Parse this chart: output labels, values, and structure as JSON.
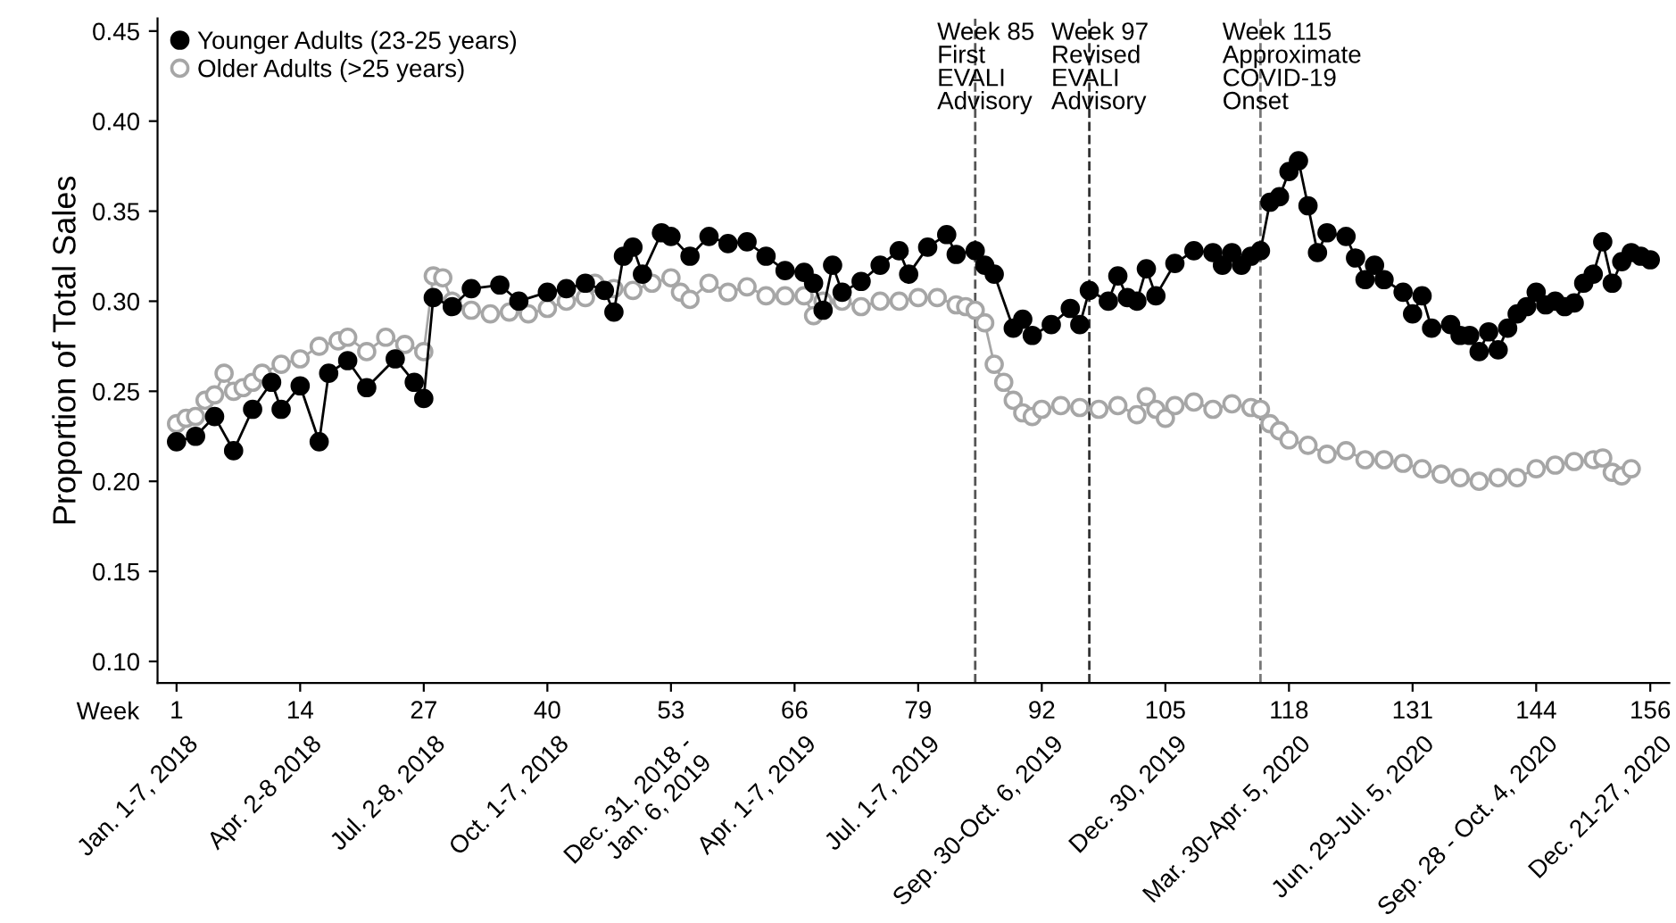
{
  "chart_data": {
    "type": "line",
    "ylabel": "Proportion of Total Sales",
    "xlabel": "Week",
    "xlim": [
      -1,
      158
    ],
    "ylim": [
      0.088,
      0.457
    ],
    "xticks": [
      1,
      14,
      27,
      40,
      53,
      66,
      79,
      92,
      105,
      118,
      131,
      144,
      156
    ],
    "yticks": [
      {
        "value": 0.1,
        "label": "0.10"
      },
      {
        "value": 0.15,
        "label": "0.15"
      },
      {
        "value": 0.2,
        "label": "0.20"
      },
      {
        "value": 0.25,
        "label": "0.25"
      },
      {
        "value": 0.3,
        "label": "0.30"
      },
      {
        "value": 0.35,
        "label": "0.35"
      },
      {
        "value": 0.4,
        "label": "0.40"
      },
      {
        "value": 0.45,
        "label": "0.45"
      }
    ],
    "grid": false,
    "legend": "top left",
    "marker": "circle",
    "line_style": "solid",
    "series": [
      {
        "name": "Younger Adults (23-25 years)",
        "color": "#000000",
        "x": [
          1,
          3,
          5,
          7,
          9,
          11,
          12,
          14,
          16,
          17,
          19,
          21,
          24,
          26,
          27,
          28,
          30,
          32,
          35,
          37,
          40,
          42,
          44,
          46,
          47,
          48,
          49,
          50,
          52,
          53,
          55,
          57,
          59,
          61,
          63,
          65,
          67,
          68,
          69,
          70,
          71,
          73,
          75,
          77,
          78,
          80,
          82,
          83,
          85,
          86,
          87,
          89,
          90,
          91,
          93,
          95,
          96,
          97,
          99,
          100,
          101,
          102,
          103,
          104,
          106,
          108,
          110,
          111,
          112,
          113,
          114,
          115,
          116,
          117,
          118,
          119,
          120,
          121,
          122,
          124,
          125,
          126,
          127,
          128,
          130,
          131,
          132,
          133,
          135,
          136,
          137,
          138,
          139,
          140,
          141,
          142,
          143,
          144,
          145,
          146,
          147,
          148,
          149,
          150,
          151,
          152,
          153,
          154,
          155,
          156
        ],
        "values": [
          0.222,
          0.225,
          0.236,
          0.217,
          0.24,
          0.255,
          0.24,
          0.253,
          0.222,
          0.26,
          0.267,
          0.252,
          0.268,
          0.255,
          0.246,
          0.302,
          0.297,
          0.307,
          0.309,
          0.3,
          0.305,
          0.307,
          0.31,
          0.306,
          0.294,
          0.325,
          0.33,
          0.315,
          0.338,
          0.336,
          0.325,
          0.336,
          0.332,
          0.333,
          0.325,
          0.317,
          0.316,
          0.31,
          0.295,
          0.32,
          0.305,
          0.311,
          0.32,
          0.328,
          0.315,
          0.33,
          0.337,
          0.326,
          0.328,
          0.32,
          0.315,
          0.285,
          0.29,
          0.281,
          0.287,
          0.296,
          0.287,
          0.306,
          0.3,
          0.314,
          0.302,
          0.3,
          0.318,
          0.303,
          0.321,
          0.328,
          0.327,
          0.32,
          0.327,
          0.32,
          0.325,
          0.328,
          0.355,
          0.358,
          0.372,
          0.378,
          0.353,
          0.327,
          0.338,
          0.336,
          0.324,
          0.312,
          0.32,
          0.312,
          0.305,
          0.293,
          0.303,
          0.285,
          0.287,
          0.281,
          0.281,
          0.272,
          0.283,
          0.273,
          0.285,
          0.293,
          0.297,
          0.305,
          0.298,
          0.3,
          0.297,
          0.299,
          0.31,
          0.315,
          0.333,
          0.31,
          0.322,
          0.327,
          0.325,
          0.323
        ]
      },
      {
        "name": "Older Adults (>25 years)",
        "color": "#a6a6a6",
        "x": [
          1,
          2,
          3,
          4,
          5,
          6,
          7,
          8,
          9,
          10,
          12,
          14,
          16,
          18,
          19,
          21,
          23,
          25,
          27,
          28,
          29,
          30,
          32,
          34,
          36,
          38,
          40,
          42,
          44,
          45,
          47,
          49,
          51,
          53,
          54,
          55,
          57,
          59,
          61,
          63,
          65,
          67,
          68,
          69,
          71,
          73,
          75,
          77,
          79,
          81,
          83,
          84,
          85,
          86,
          87,
          88,
          89,
          90,
          91,
          92,
          94,
          96,
          98,
          100,
          102,
          103,
          104,
          105,
          106,
          108,
          110,
          112,
          114,
          115,
          116,
          117,
          118,
          120,
          122,
          124,
          126,
          128,
          130,
          132,
          134,
          136,
          138,
          140,
          142,
          144,
          146,
          148,
          150,
          151,
          152,
          153,
          154
        ],
        "values": [
          0.232,
          0.235,
          0.236,
          0.245,
          0.248,
          0.26,
          0.25,
          0.252,
          0.255,
          0.26,
          0.265,
          0.268,
          0.275,
          0.278,
          0.28,
          0.272,
          0.28,
          0.276,
          0.272,
          0.314,
          0.313,
          0.3,
          0.295,
          0.293,
          0.294,
          0.293,
          0.296,
          0.3,
          0.302,
          0.31,
          0.307,
          0.306,
          0.31,
          0.313,
          0.305,
          0.301,
          0.31,
          0.305,
          0.308,
          0.303,
          0.303,
          0.303,
          0.292,
          0.3,
          0.3,
          0.297,
          0.3,
          0.3,
          0.302,
          0.302,
          0.298,
          0.297,
          0.295,
          0.288,
          0.265,
          0.255,
          0.245,
          0.238,
          0.236,
          0.24,
          0.242,
          0.241,
          0.24,
          0.242,
          0.237,
          0.247,
          0.24,
          0.235,
          0.242,
          0.244,
          0.24,
          0.243,
          0.241,
          0.24,
          0.232,
          0.228,
          0.223,
          0.22,
          0.215,
          0.217,
          0.212,
          0.212,
          0.21,
          0.207,
          0.204,
          0.202,
          0.2,
          0.202,
          0.202,
          0.207,
          0.209,
          0.211,
          0.212,
          0.213,
          0.205,
          0.203,
          0.207
        ]
      }
    ],
    "ref_lines": [
      {
        "axis": "x",
        "value": 85,
        "label": "Week 85\nFirst\nEVALI\nAdvisory",
        "color": "#555555",
        "line_style": "dashed"
      },
      {
        "axis": "x",
        "value": 97,
        "label": "Week 97\nRevised\nEVALI\nAdvisory",
        "color": "#333333",
        "line_style": "dashed"
      },
      {
        "axis": "x",
        "value": 115,
        "label": "Week 115\nApproximate\nCOVID-19\nOnset",
        "color": "#777777",
        "line_style": "dashed"
      }
    ],
    "annotations": [
      "Jan. 1-7, 2018",
      "Apr. 2-8 2018",
      "Jul. 2-8, 2018",
      "Oct. 1-7, 2018",
      "Dec. 31, 2018 -\nJan. 6, 2019",
      "Apr. 1-7, 2019",
      "Jul. 1-7, 2019",
      "Sep. 30-Oct. 6, 2019",
      "Dec. 30, 2019",
      "Mar. 30-Apr. 5, 2020",
      "Jun. 29-Jul. 5, 2020",
      "Sep. 28 - Oct. 4, 2020",
      "Dec. 21-27, 2020"
    ]
  }
}
